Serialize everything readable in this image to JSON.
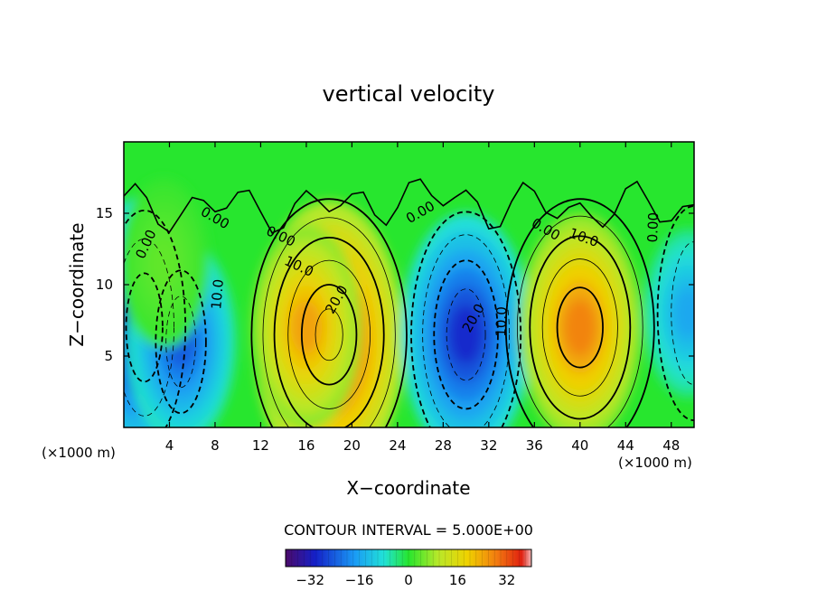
{
  "chart_data": {
    "type": "heatmap",
    "title": "vertical velocity",
    "xlabel": "X−coordinate",
    "ylabel": "Z−coordinate",
    "x_unit_left": "(×1000 m)",
    "x_unit_right": "(×1000 m)",
    "xlim": [
      0,
      50
    ],
    "ylim": [
      0,
      20
    ],
    "x_ticks": [
      4,
      8,
      12,
      16,
      20,
      24,
      28,
      32,
      36,
      40,
      44,
      48
    ],
    "x_tick_labels": [
      "4",
      "8",
      "12",
      "16",
      "20",
      "24",
      "28",
      "32",
      "36",
      "40",
      "44",
      "48"
    ],
    "y_ticks": [
      5,
      10,
      15
    ],
    "y_tick_labels": [
      "5",
      "10",
      "15"
    ],
    "grid": false,
    "contour_interval_text": "CONTOUR INTERVAL = 5.000E+00",
    "contour_interval": 5,
    "colorbar": {
      "range": [
        -40,
        40
      ],
      "ticks": [
        -32,
        -16,
        0,
        16,
        32
      ],
      "tick_labels": [
        "−32",
        "−16",
        "0",
        "16",
        "32"
      ]
    },
    "contour_labels": [
      {
        "text": "0.00",
        "x": 2.3,
        "y": 12.7,
        "angle": 65
      },
      {
        "text": "0.00",
        "x": 7.8,
        "y": 14.4,
        "angle": -30
      },
      {
        "text": "10.0",
        "x": 8.6,
        "y": 9.3,
        "angle": 85
      },
      {
        "text": "0.00",
        "x": 13.6,
        "y": 13.1,
        "angle": -25
      },
      {
        "text": "10.0",
        "x": 15.2,
        "y": 11.0,
        "angle": -25
      },
      {
        "text": "20.0",
        "x": 19.0,
        "y": 8.8,
        "angle": 60
      },
      {
        "text": "0.00",
        "x": 26.2,
        "y": 14.8,
        "angle": 30
      },
      {
        "text": "20.0",
        "x": 31.0,
        "y": 7.5,
        "angle": 60
      },
      {
        "text": "10.0",
        "x": 33.5,
        "y": 7.4,
        "angle": 88
      },
      {
        "text": "0.00",
        "x": 36.8,
        "y": 13.6,
        "angle": -30
      },
      {
        "text": "10.0",
        "x": 40.2,
        "y": 13.0,
        "angle": -20
      },
      {
        "text": "0.00",
        "x": 46.8,
        "y": 14.0,
        "angle": 88
      }
    ],
    "cells": [
      {
        "x": 1.5,
        "z": 7.0,
        "value": -31
      },
      {
        "x": 5.0,
        "z": 6.0,
        "value": -24
      },
      {
        "x": 3.5,
        "z": 11.5,
        "value": 4
      },
      {
        "x": 18.0,
        "z": 6.0,
        "value": 34
      },
      {
        "x": 16.0,
        "z": 7.0,
        "value": 24
      },
      {
        "x": 30.0,
        "z": 6.5,
        "value": -29
      },
      {
        "x": 40.0,
        "z": 7.0,
        "value": 27
      },
      {
        "x": 49.5,
        "z": 8.0,
        "value": -16
      }
    ]
  }
}
